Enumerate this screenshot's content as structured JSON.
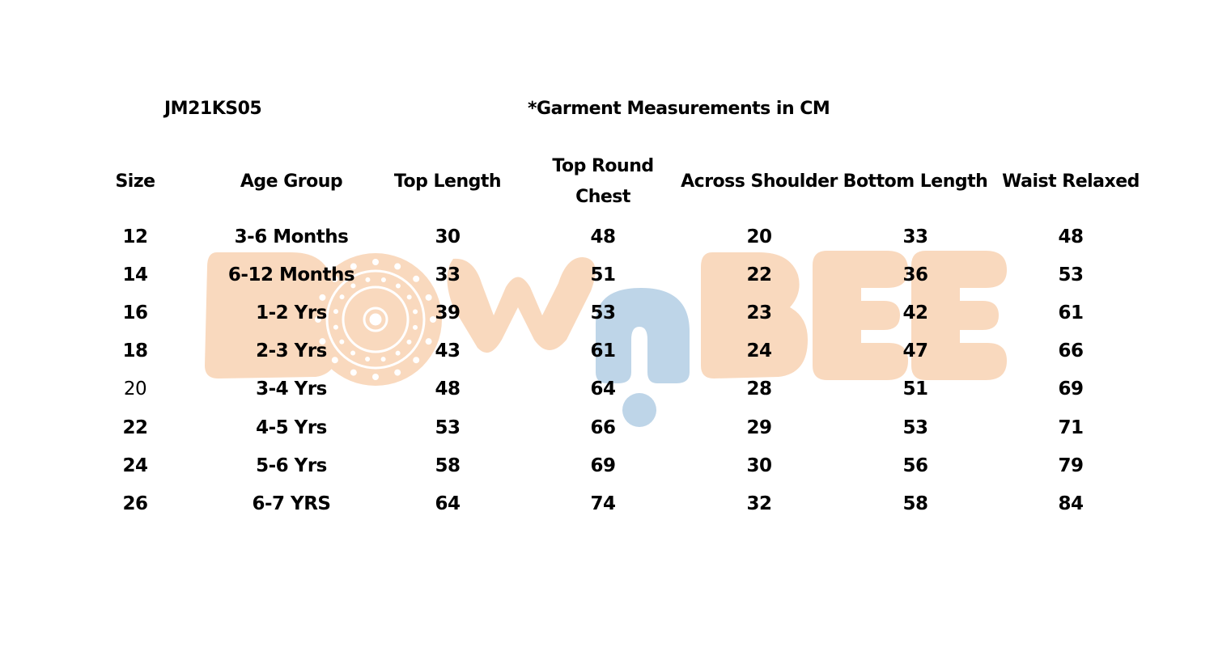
{
  "header": {
    "style_code": "JM21KS05",
    "note": "*Garment Measurements in CM"
  },
  "table": {
    "columns": [
      "Size",
      "Age Group",
      "Top Length",
      "Top Round Chest",
      "Across Shoulder",
      "Bottom Length",
      "Waist Relaxed"
    ],
    "rows": [
      [
        "12",
        "3-6 Months",
        "30",
        "48",
        "20",
        "33",
        "48"
      ],
      [
        "14",
        "6-12 Months",
        "33",
        "51",
        "22",
        "36",
        "53"
      ],
      [
        "16",
        "1-2 Yrs",
        "39",
        "53",
        "23",
        "42",
        "61"
      ],
      [
        "18",
        "2-3 Yrs",
        "43",
        "61",
        "24",
        "47",
        "66"
      ],
      [
        "20",
        "3-4 Yrs",
        "48",
        "64",
        "28",
        "51",
        "69"
      ],
      [
        "22",
        "4-5 Yrs",
        "53",
        "66",
        "29",
        "53",
        "71"
      ],
      [
        "24",
        "5-6 Yrs",
        "58",
        "69",
        "30",
        "56",
        "79"
      ],
      [
        "26",
        "6-7 YRS",
        "64",
        "74",
        "32",
        "58",
        "84"
      ]
    ]
  },
  "watermark": {
    "text": "BOWnBEE",
    "color_main": "#f9d9be",
    "color_accent": "#bed5e8"
  }
}
